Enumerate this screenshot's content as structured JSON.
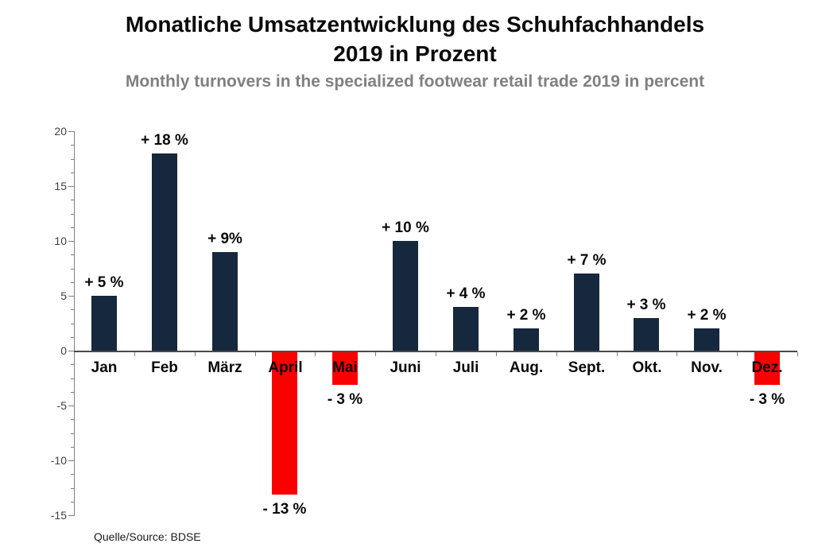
{
  "title": {
    "line1": "Monatliche Umsatzentwicklung des Schuhfachhandels",
    "line2": "2019 in Prozent",
    "subtitle": "Monthly turnovers in the specialized footwear retail trade 2019 in percent"
  },
  "source": "Quelle/Source: BDSE",
  "colors": {
    "positive_bar": "#16283e",
    "negative_bar": "#fb0000",
    "axis": "#808080",
    "zero_line": "#4a4a4a",
    "title_text": "#0a0a0a",
    "subtitle_text": "#808080",
    "axis_label_text": "#404040"
  },
  "chart_data": {
    "type": "bar",
    "title": "Monatliche Umsatzentwicklung des Schuhfachhandels 2019 in Prozent",
    "subtitle": "Monthly turnovers in the specialized footwear retail trade 2019 in percent",
    "categories": [
      "Jan",
      "Feb",
      "März",
      "April",
      "Mai",
      "Juni",
      "Juli",
      "Aug.",
      "Sept.",
      "Okt.",
      "Nov.",
      "Dez."
    ],
    "values": [
      5,
      18,
      9,
      -13,
      -3,
      10,
      4,
      2,
      7,
      3,
      2,
      -3
    ],
    "data_labels": [
      "+ 5 %",
      "+ 18 %",
      "+ 9%",
      "- 13 %",
      "- 3 %",
      "+ 10 %",
      "+ 4 %",
      "+ 2 %",
      "+ 7 %",
      "+ 3 %",
      "+ 2 %",
      "- 3 %"
    ],
    "ylim": [
      -15,
      20
    ],
    "y_major_ticks": [
      20,
      15,
      10,
      5,
      0,
      -5,
      -10,
      -15
    ],
    "y_major_tick_interval": 5,
    "y_minor_tick_interval": 1.25,
    "grid": false,
    "legend": "none",
    "xlabel": "",
    "ylabel": "",
    "source": "Quelle/Source: BDSE"
  }
}
